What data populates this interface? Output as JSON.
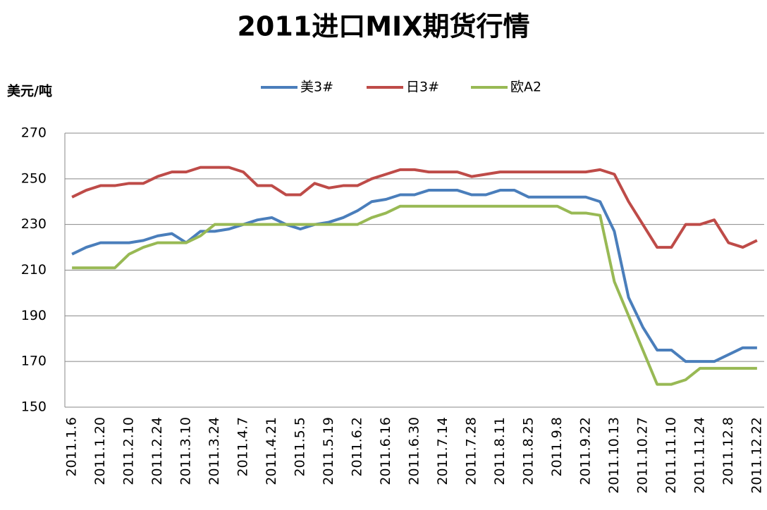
{
  "chart_data": {
    "type": "line",
    "title": "2011进口MIX期货行情",
    "y_label": "美元/吨",
    "categories": [
      "2011.1.6",
      null,
      "2011.1.20",
      null,
      "2011.2.10",
      null,
      "2011.2.24",
      null,
      "2011.3.10",
      null,
      "2011.3.24",
      null,
      "2011.4.7",
      null,
      "2011.4.21",
      null,
      "2011.5.5",
      null,
      "2011.5.19",
      null,
      "2011.6.2",
      null,
      "2011.6.16",
      null,
      "2011.6.30",
      null,
      "2011.7.14",
      null,
      "2011.7.28",
      null,
      "2011.8.11",
      null,
      "2011.8.25",
      null,
      "2011.9.8",
      null,
      "2011.9.22",
      null,
      "2011.10.13",
      null,
      "2011.10.27",
      null,
      "2011.11.10",
      null,
      "2011.11.24",
      null,
      "2011.12.8",
      null,
      "2011.12.22"
    ],
    "series": [
      {
        "name": "美3#",
        "color": "#4a7ebb",
        "values": [
          217,
          220,
          222,
          222,
          222,
          223,
          225,
          226,
          222,
          227,
          227,
          228,
          230,
          232,
          233,
          230,
          228,
          230,
          231,
          233,
          236,
          240,
          241,
          243,
          243,
          245,
          245,
          245,
          243,
          243,
          245,
          245,
          242,
          242,
          242,
          242,
          242,
          240,
          227,
          198,
          185,
          175,
          175,
          170,
          170,
          170,
          173,
          176,
          176
        ]
      },
      {
        "name": "日3#",
        "color": "#be4b48",
        "values": [
          242,
          245,
          247,
          247,
          248,
          248,
          251,
          253,
          253,
          255,
          255,
          255,
          253,
          247,
          247,
          243,
          243,
          248,
          246,
          247,
          247,
          250,
          252,
          254,
          254,
          253,
          253,
          253,
          251,
          252,
          253,
          253,
          253,
          253,
          253,
          253,
          253,
          254,
          252,
          240,
          230,
          220,
          220,
          230,
          230,
          232,
          222,
          220,
          223
        ]
      },
      {
        "name": "欧A2",
        "color": "#98b954",
        "values": [
          211,
          211,
          211,
          211,
          217,
          220,
          222,
          222,
          222,
          225,
          230,
          230,
          230,
          230,
          230,
          230,
          230,
          230,
          230,
          230,
          230,
          233,
          235,
          238,
          238,
          238,
          238,
          238,
          238,
          238,
          238,
          238,
          238,
          238,
          238,
          235,
          235,
          234,
          205,
          190,
          175,
          160,
          160,
          162,
          167,
          167,
          167,
          167,
          167
        ]
      }
    ],
    "ylim": [
      150,
      270
    ],
    "yticks": [
      150,
      170,
      190,
      210,
      230,
      250,
      270
    ],
    "grid": true,
    "legend": "top"
  }
}
